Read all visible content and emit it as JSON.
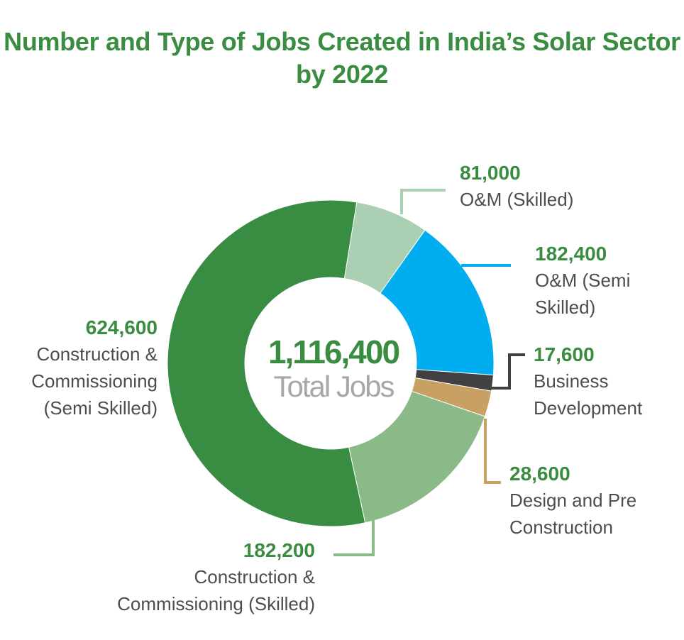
{
  "title": "Number and Type of Jobs Created in India’s Solar Sector by 2022",
  "center": {
    "total": "1,116,400",
    "caption": "Total Jobs"
  },
  "chart_data": {
    "type": "pie",
    "title": "Number and Type of Jobs Created in India’s Solar Sector by 2022",
    "total": 1116400,
    "slices": [
      {
        "label": "O&M (Skilled)",
        "value": 81000,
        "value_text": "81,000",
        "color": "#abcfb2"
      },
      {
        "label": "O&M (Semi Skilled)",
        "value": 182400,
        "value_text": "182,400",
        "color": "#00aeef"
      },
      {
        "label": "Business Development",
        "value": 17600,
        "value_text": "17,600",
        "color": "#414042"
      },
      {
        "label": "Design and Pre Construction",
        "value": 28600,
        "value_text": "28,600",
        "color": "#c9a063"
      },
      {
        "label": "Construction & Commissioning (Skilled)",
        "value": 182200,
        "value_text": "182,200",
        "color": "#8aba88"
      },
      {
        "label": "Construction & Commissioning (Semi Skilled)",
        "value": 624600,
        "value_text": "624,600",
        "color": "#388d43"
      }
    ]
  },
  "labels": [
    {
      "value": "81,000",
      "text": "O&M (Skilled)"
    },
    {
      "value": "182,400",
      "text": "O&M (Semi\nSkilled)"
    },
    {
      "value": "17,600",
      "text": "Business\nDevelopment"
    },
    {
      "value": "28,600",
      "text": "Design and Pre\nConstruction"
    },
    {
      "value": "182,200",
      "text": "Construction &\nCommissioning (Skilled)"
    },
    {
      "value": "624,600",
      "text": "Construction &\nCommissioning\n(Semi Skilled)"
    }
  ]
}
